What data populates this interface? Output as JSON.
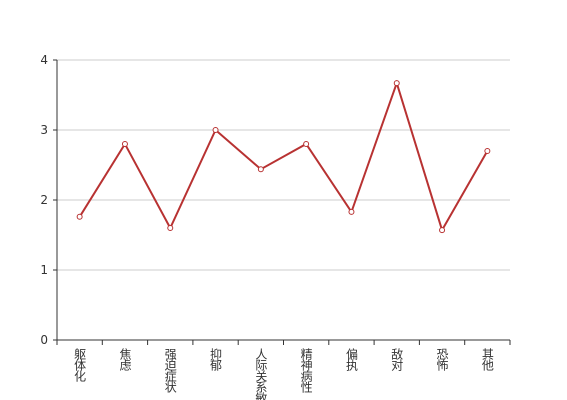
{
  "chart_data": {
    "type": "line",
    "categories": [
      "躯体化",
      "焦虑",
      "强迫症状",
      "抑郁",
      "人际关系敏感",
      "精神病性",
      "偏执",
      "敌对",
      "恐怖",
      "其他"
    ],
    "values": [
      1.76,
      2.8,
      1.6,
      3.0,
      2.44,
      2.8,
      1.83,
      3.67,
      1.57,
      2.7
    ],
    "color": "#b83232",
    "ylim": [
      0,
      4
    ],
    "yticks": [
      0,
      1,
      2,
      3,
      4
    ],
    "grid": true
  }
}
